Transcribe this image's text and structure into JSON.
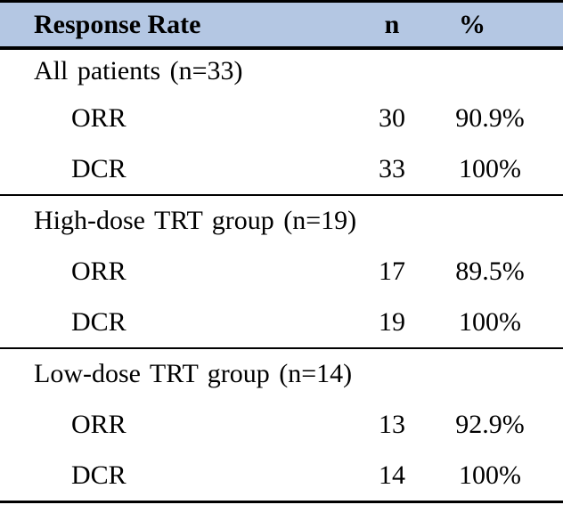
{
  "chart_data": {
    "type": "table",
    "title": "Response Rate",
    "columns": [
      "Response Rate",
      "n",
      "%"
    ],
    "colors": {
      "header_bg": "#b4c7e3",
      "border": "#000000",
      "text": "#000000"
    },
    "sections": [
      {
        "group": "All patients (n=33)",
        "rows": [
          {
            "label": "ORR",
            "n": "30",
            "pct": "90.9%"
          },
          {
            "label": "DCR",
            "n": "33",
            "pct": "100%"
          }
        ]
      },
      {
        "group": "High-dose TRT group (n=19)",
        "rows": [
          {
            "label": "ORR",
            "n": "17",
            "pct": "89.5%"
          },
          {
            "label": "DCR",
            "n": "19",
            "pct": "100%"
          }
        ]
      },
      {
        "group": "Low-dose TRT group (n=14)",
        "rows": [
          {
            "label": "ORR",
            "n": "13",
            "pct": "92.9%"
          },
          {
            "label": "DCR",
            "n": "14",
            "pct": "100%"
          }
        ]
      }
    ]
  }
}
